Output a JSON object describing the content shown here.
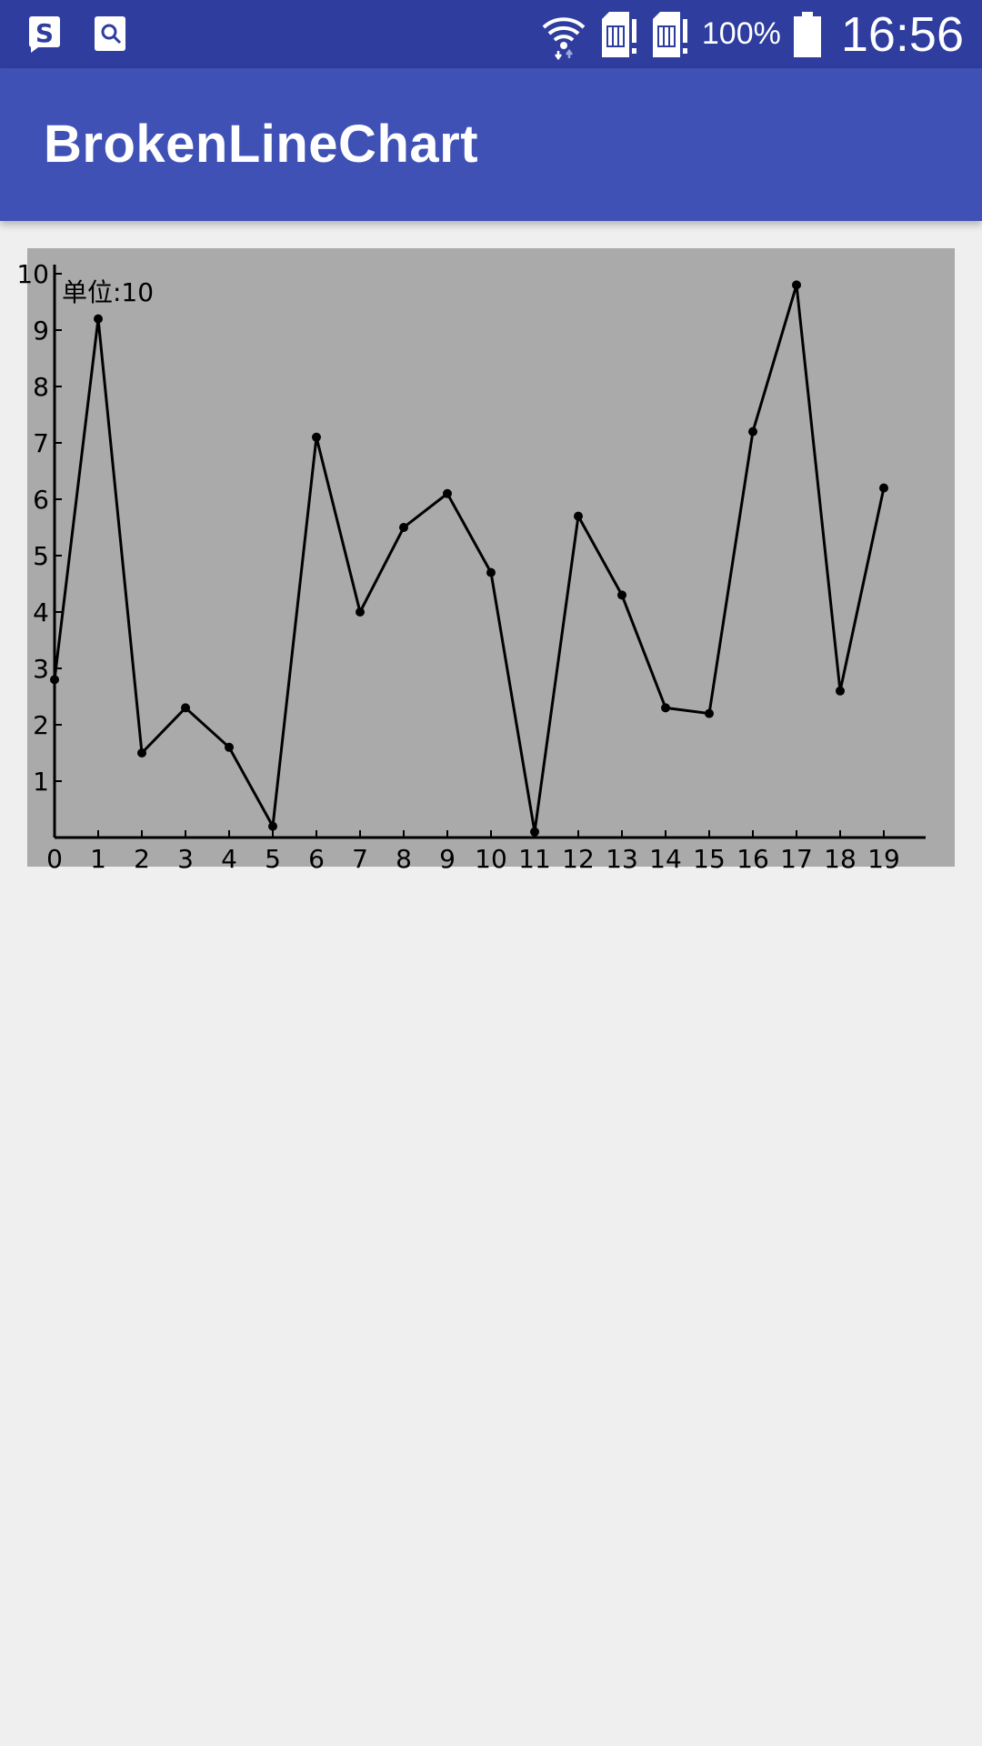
{
  "status_bar": {
    "left_icons": [
      "sim-app-icon",
      "search-app-icon"
    ],
    "right_icons": [
      "wifi-icon",
      "sim1-icon",
      "sim2-icon",
      "battery-icon"
    ],
    "battery_percent": "100%",
    "time": "16:56",
    "background_color": "#2f3d9f"
  },
  "app_bar": {
    "title": "BrokenLineChart",
    "background_color": "#3f51b5"
  },
  "chart_data": {
    "type": "line",
    "title": "",
    "unit_label": "单位:10",
    "xlabel": "",
    "ylabel": "",
    "x": [
      0,
      1,
      2,
      3,
      4,
      5,
      6,
      7,
      8,
      9,
      10,
      11,
      12,
      13,
      14,
      15,
      16,
      17,
      18,
      19
    ],
    "y_ticks": [
      1,
      2,
      3,
      4,
      5,
      6,
      7,
      8,
      9,
      10
    ],
    "x_range": [
      0,
      20
    ],
    "y_range": [
      0,
      10
    ],
    "series": [
      {
        "values": [
          2.8,
          9.2,
          1.5,
          2.3,
          1.6,
          0.2,
          7.1,
          4.0,
          5.5,
          6.1,
          4.7,
          0.1,
          5.7,
          4.3,
          2.3,
          2.2,
          7.2,
          9.8,
          2.6,
          6.2
        ],
        "color": "#000000"
      }
    ],
    "grid": false,
    "background_color": "#aaaaaa"
  }
}
